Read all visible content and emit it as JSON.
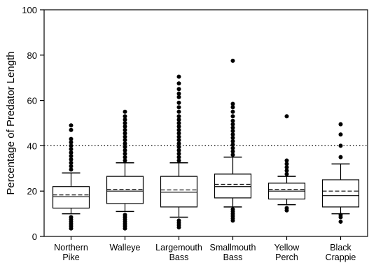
{
  "chart_data": {
    "type": "box",
    "title": "",
    "xlabel": "",
    "ylabel": "Percentage of Predator Length",
    "ylim": [
      0,
      100
    ],
    "yticks": [
      0,
      20,
      40,
      60,
      80,
      100
    ],
    "reference_line": {
      "y": 40,
      "style": "dotted"
    },
    "grid": false,
    "categories": [
      [
        "Northern",
        "Pike"
      ],
      [
        "Walleye"
      ],
      [
        "Largemouth",
        "Bass"
      ],
      [
        "Smallmouth",
        "Bass"
      ],
      [
        "Yellow",
        "Perch"
      ],
      [
        "Black",
        "Crappie"
      ]
    ],
    "boxes": [
      {
        "q1": 12.5,
        "median": 17.5,
        "mean": 18.3,
        "q3": 22.0,
        "whisker_low": 10.0,
        "whisker_high": 28.0,
        "outliers": [
          3.5,
          4.5,
          5.5,
          6.5,
          7.5,
          8.5,
          29.5,
          31.0,
          32.5,
          34.0,
          35.5,
          37.0,
          38.5,
          40.0,
          41.5,
          43.0,
          47.0,
          49.0
        ]
      },
      {
        "q1": 14.5,
        "median": 20.0,
        "mean": 20.8,
        "q3": 26.5,
        "whisker_low": 11.0,
        "whisker_high": 32.5,
        "outliers": [
          3.5,
          4.5,
          5.5,
          6.5,
          7.5,
          8.5,
          9.5,
          33.5,
          35.0,
          36.5,
          38.0,
          39.5,
          41.0,
          42.5,
          44.0,
          45.5,
          47.0,
          48.5,
          50.0,
          51.5,
          53.0,
          55.0
        ]
      },
      {
        "q1": 13.0,
        "median": 19.5,
        "mean": 20.5,
        "q3": 26.5,
        "whisker_low": 8.5,
        "whisker_high": 32.5,
        "outliers": [
          4.0,
          5.0,
          6.0,
          7.0,
          33.5,
          35.0,
          36.5,
          38.0,
          39.5,
          41.0,
          42.5,
          44.0,
          45.5,
          47.0,
          48.5,
          50.0,
          51.5,
          53.0,
          55.0,
          57.0,
          59.0,
          61.5,
          63.0,
          65.0,
          67.5,
          70.5
        ]
      },
      {
        "q1": 17.0,
        "median": 22.0,
        "mean": 23.0,
        "q3": 27.5,
        "whisker_low": 13.0,
        "whisker_high": 35.0,
        "outliers": [
          7.0,
          8.0,
          9.0,
          10.0,
          11.0,
          12.0,
          36.0,
          37.5,
          39.0,
          40.5,
          42.0,
          43.5,
          45.0,
          46.5,
          48.0,
          49.5,
          51.0,
          53.0,
          55.0,
          57.0,
          58.5,
          77.5
        ]
      },
      {
        "q1": 16.5,
        "median": 20.0,
        "mean": 20.8,
        "q3": 23.5,
        "whisker_low": 14.0,
        "whisker_high": 26.5,
        "outliers": [
          11.5,
          12.5,
          27.5,
          29.0,
          30.5,
          32.0,
          33.5,
          53.0
        ]
      },
      {
        "q1": 13.0,
        "median": 18.0,
        "mean": 20.0,
        "q3": 25.0,
        "whisker_low": 10.0,
        "whisker_high": 32.0,
        "outliers": [
          6.5,
          8.5,
          9.5,
          35.0,
          40.0,
          45.0,
          49.5
        ]
      }
    ],
    "colors": {
      "box": "#000000",
      "outlier": "#000000",
      "background": "#ffffff"
    }
  }
}
